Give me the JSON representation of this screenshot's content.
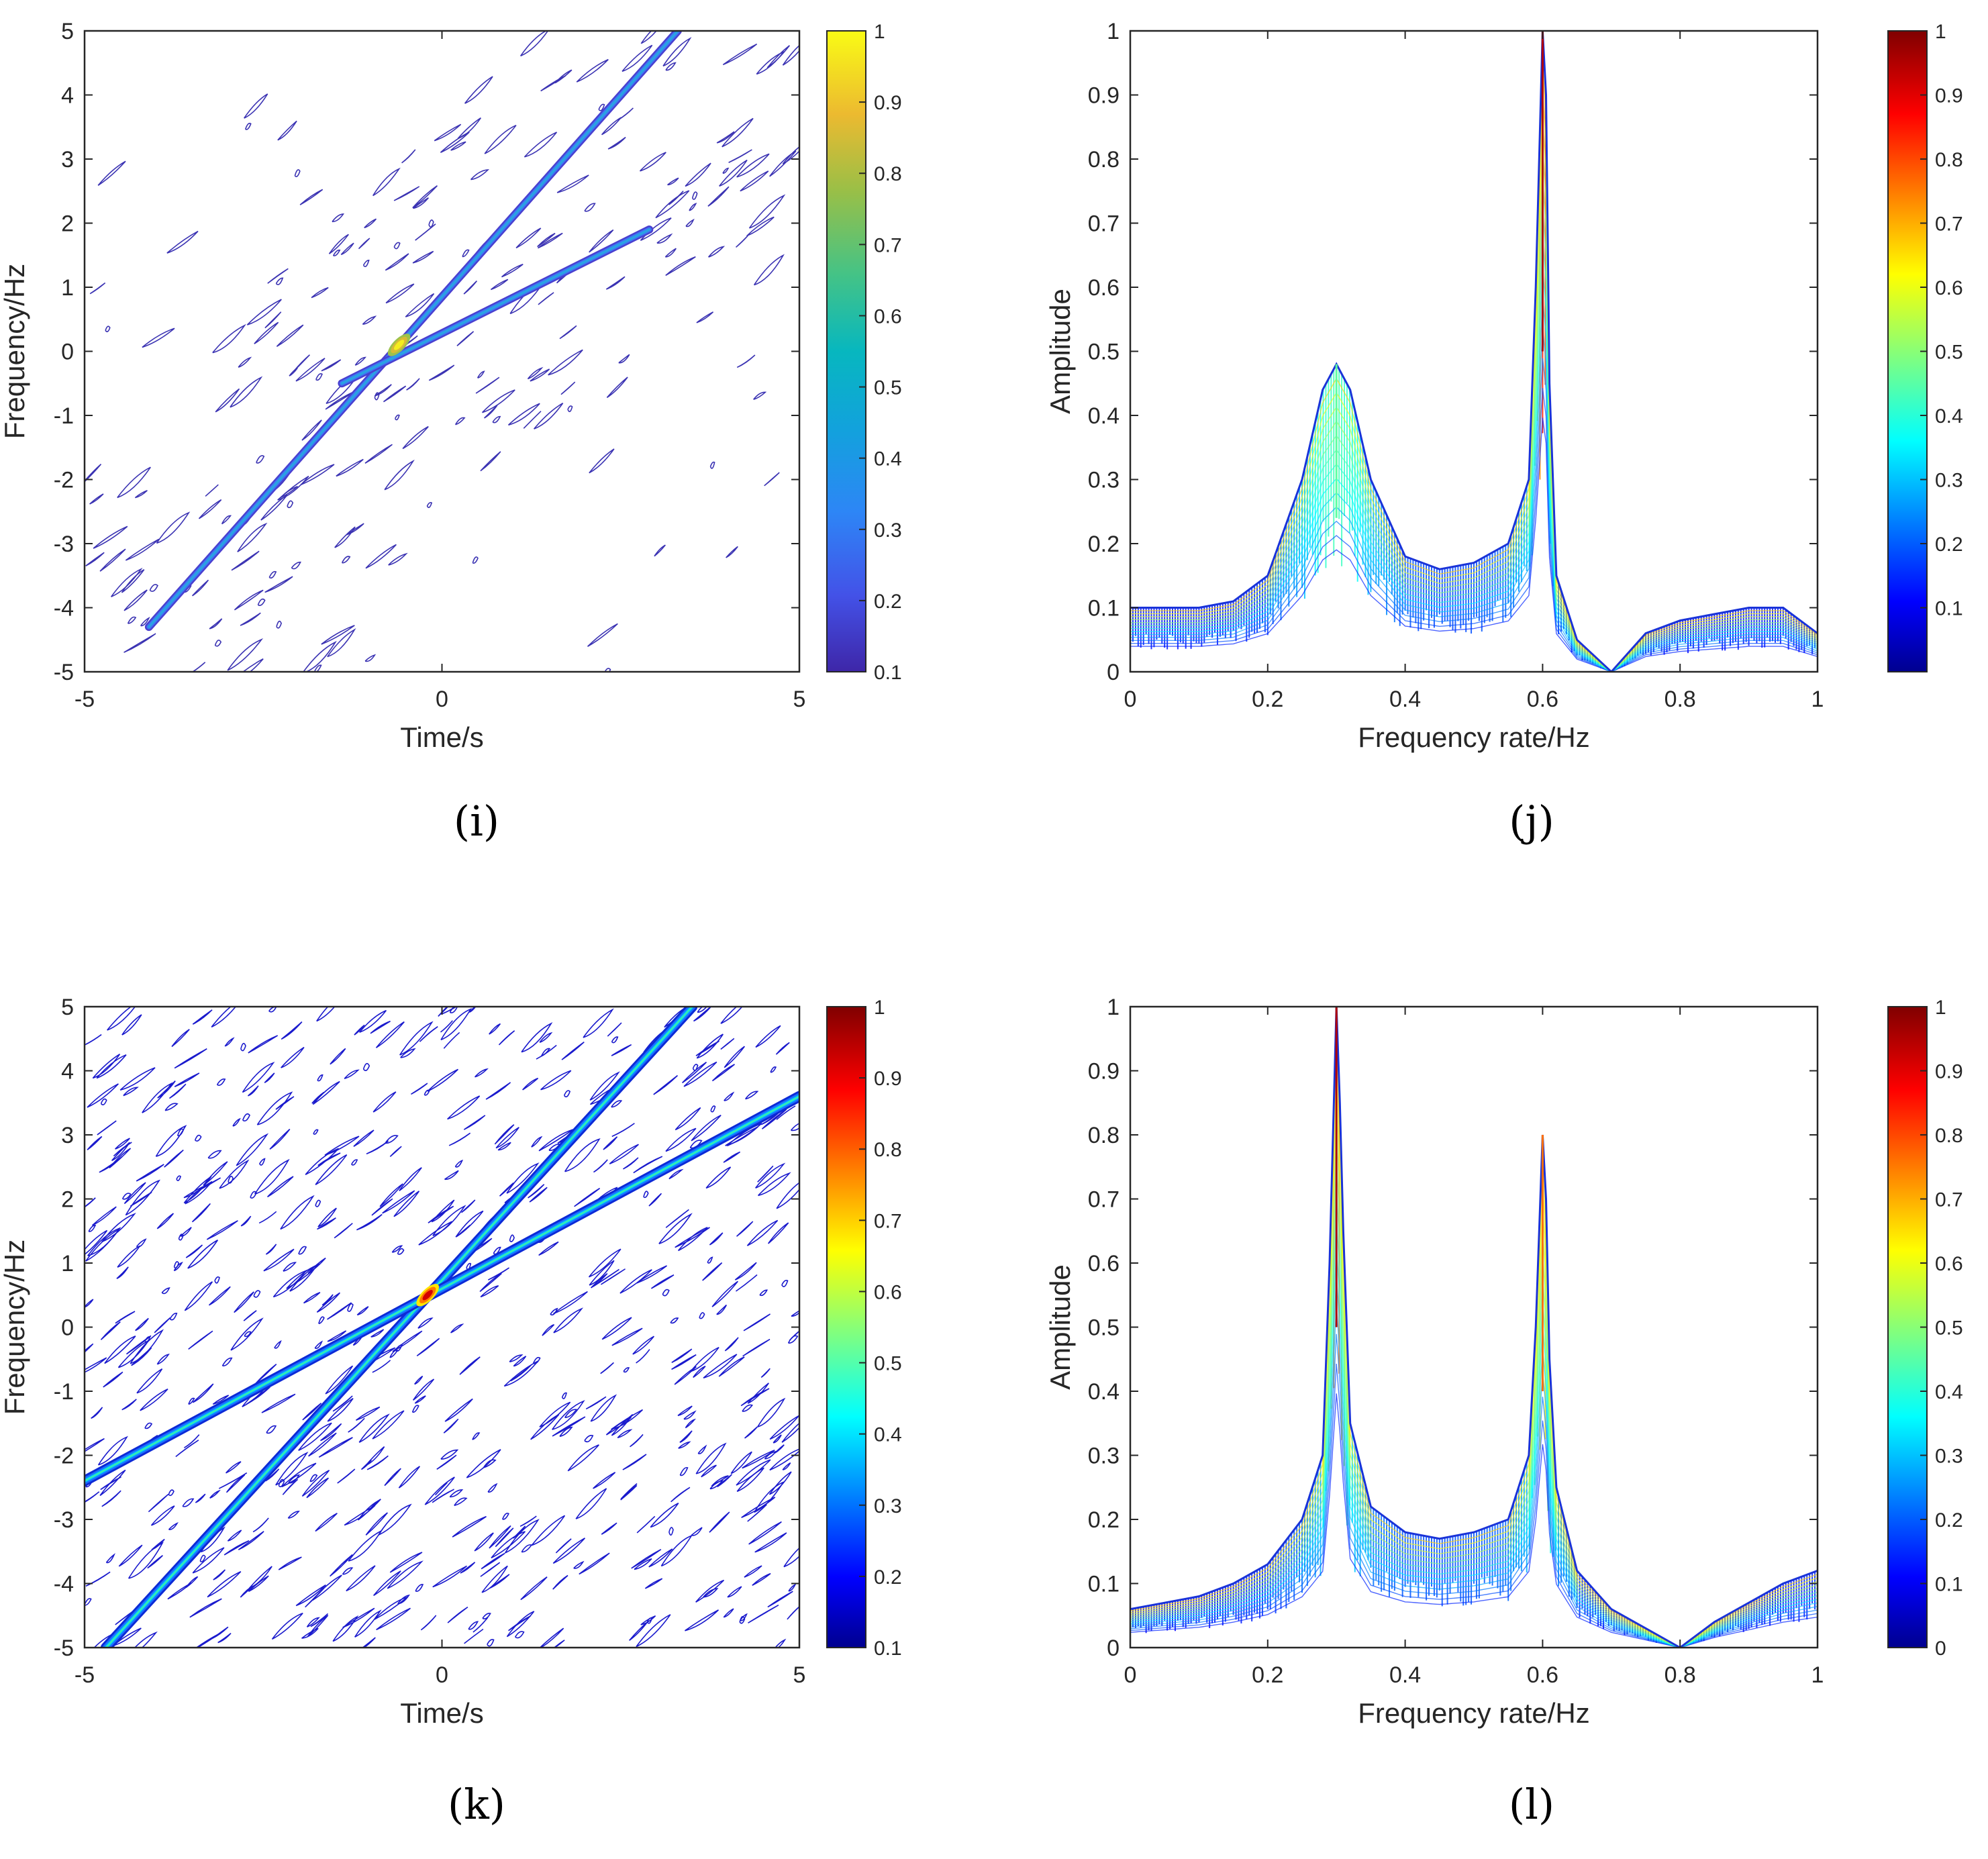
{
  "chart_data": [
    {
      "panel": "(i)",
      "type": "contour",
      "xlabel": "Time/s",
      "ylabel": "Frequency/Hz",
      "xlim": [
        -5,
        5
      ],
      "ylim": [
        -5,
        5
      ],
      "xticks": [
        "-5",
        "0",
        "5"
      ],
      "yticks": [
        "-5",
        "-4",
        "-3",
        "-2",
        "-1",
        "0",
        "1",
        "2",
        "3",
        "4",
        "5"
      ],
      "colormap": "parula",
      "colorbar": {
        "min": 0.1,
        "max": 1,
        "ticks": [
          "0.1",
          "0.2",
          "0.3",
          "0.4",
          "0.5",
          "0.6",
          "0.7",
          "0.8",
          "0.9",
          "1"
        ]
      },
      "series": [
        {
          "name": "chirp component 1",
          "x": [
            -4.1,
            3.3
          ],
          "y": [
            -4.3,
            5.0
          ]
        },
        {
          "name": "chirp component 2",
          "x": [
            -1.4,
            2.9
          ],
          "y": [
            -0.5,
            1.9
          ]
        }
      ],
      "peak": {
        "x": -0.6,
        "y": 0.1,
        "value": 0.75
      }
    },
    {
      "panel": "(j)",
      "type": "line",
      "xlabel": "Frequency rate/Hz",
      "ylabel": "Amplitude",
      "xlim": [
        0,
        1
      ],
      "ylim": [
        0,
        1
      ],
      "xticks": [
        "0",
        "0.2",
        "0.4",
        "0.6",
        "0.8",
        "1"
      ],
      "yticks": [
        "0",
        "0.1",
        "0.2",
        "0.3",
        "0.4",
        "0.5",
        "0.6",
        "0.7",
        "0.8",
        "0.9",
        "1"
      ],
      "colormap": "jet",
      "colorbar": {
        "min": 0,
        "max": 1,
        "ticks": [
          "0.1",
          "0.2",
          "0.3",
          "0.4",
          "0.5",
          "0.6",
          "0.7",
          "0.8",
          "0.9",
          "1"
        ]
      },
      "series": [
        {
          "name": "envelope",
          "x": [
            0,
            0.05,
            0.1,
            0.15,
            0.2,
            0.25,
            0.28,
            0.3,
            0.32,
            0.35,
            0.4,
            0.45,
            0.5,
            0.55,
            0.58,
            0.59,
            0.6,
            0.605,
            0.61,
            0.62,
            0.65,
            0.7,
            0.75,
            0.8,
            0.85,
            0.9,
            0.95,
            1.0
          ],
          "y": [
            0.1,
            0.1,
            0.1,
            0.11,
            0.15,
            0.3,
            0.44,
            0.48,
            0.44,
            0.3,
            0.18,
            0.16,
            0.17,
            0.2,
            0.3,
            0.6,
            1.0,
            0.9,
            0.45,
            0.15,
            0.05,
            0.0,
            0.06,
            0.08,
            0.09,
            0.1,
            0.1,
            0.06
          ]
        }
      ],
      "peaks": [
        {
          "x": 0.3,
          "y": 0.48
        },
        {
          "x": 0.6,
          "y": 1.0
        }
      ]
    },
    {
      "panel": "(k)",
      "type": "contour",
      "xlabel": "Time/s",
      "ylabel": "Frequency/Hz",
      "xlim": [
        -5,
        5
      ],
      "ylim": [
        -5,
        5
      ],
      "xticks": [
        "-5",
        "0",
        "5"
      ],
      "yticks": [
        "-5",
        "-4",
        "-3",
        "-2",
        "-1",
        "0",
        "1",
        "2",
        "3",
        "4",
        "5"
      ],
      "colormap": "jet",
      "colorbar": {
        "min": 0.1,
        "max": 1,
        "ticks": [
          "0.1",
          "0.2",
          "0.3",
          "0.4",
          "0.5",
          "0.6",
          "0.7",
          "0.8",
          "0.9",
          "1"
        ]
      },
      "series": [
        {
          "name": "chirp component 1",
          "x": [
            -4.7,
            3.5
          ],
          "y": [
            -5.0,
            5.0
          ]
        },
        {
          "name": "chirp component 2",
          "x": [
            -5.0,
            5.0
          ],
          "y": [
            -2.4,
            3.6
          ]
        }
      ],
      "peak": {
        "x": -0.2,
        "y": 0.5,
        "value": 1.0
      }
    },
    {
      "panel": "(l)",
      "type": "line",
      "xlabel": "Frequency rate/Hz",
      "ylabel": "Amplitude",
      "xlim": [
        0,
        1
      ],
      "ylim": [
        0,
        1
      ],
      "xticks": [
        "0",
        "0.2",
        "0.4",
        "0.6",
        "0.8",
        "1"
      ],
      "yticks": [
        "0",
        "0.1",
        "0.2",
        "0.3",
        "0.4",
        "0.5",
        "0.6",
        "0.7",
        "0.8",
        "0.9",
        "1"
      ],
      "colormap": "jet",
      "colorbar": {
        "min": 0,
        "max": 1,
        "ticks": [
          "0",
          "0.1",
          "0.2",
          "0.3",
          "0.4",
          "0.5",
          "0.6",
          "0.7",
          "0.8",
          "0.9",
          "1"
        ]
      },
      "series": [
        {
          "name": "envelope",
          "x": [
            0,
            0.05,
            0.1,
            0.15,
            0.2,
            0.25,
            0.28,
            0.29,
            0.3,
            0.305,
            0.31,
            0.32,
            0.35,
            0.4,
            0.45,
            0.5,
            0.55,
            0.58,
            0.59,
            0.6,
            0.605,
            0.61,
            0.62,
            0.65,
            0.7,
            0.75,
            0.8,
            0.85,
            0.9,
            0.95,
            1.0
          ],
          "y": [
            0.06,
            0.07,
            0.08,
            0.1,
            0.13,
            0.2,
            0.3,
            0.6,
            1.0,
            0.85,
            0.65,
            0.35,
            0.22,
            0.18,
            0.17,
            0.18,
            0.2,
            0.3,
            0.5,
            0.8,
            0.7,
            0.45,
            0.25,
            0.12,
            0.06,
            0.03,
            0.0,
            0.04,
            0.07,
            0.1,
            0.12
          ]
        }
      ],
      "peaks": [
        {
          "x": 0.3,
          "y": 1.0
        },
        {
          "x": 0.6,
          "y": 0.8
        }
      ]
    }
  ]
}
